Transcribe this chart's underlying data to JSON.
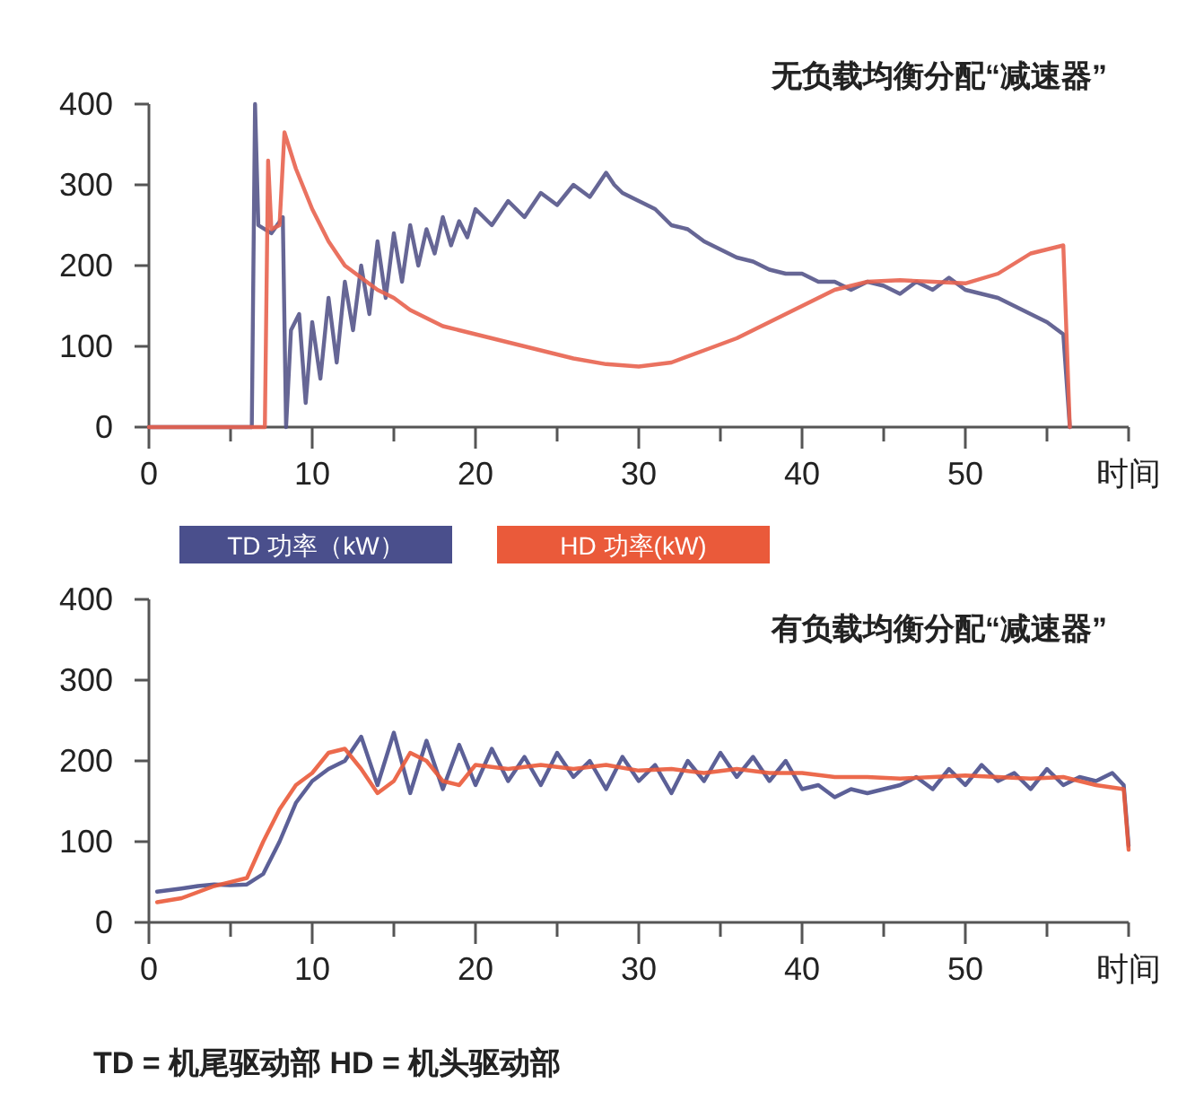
{
  "chart_data": [
    {
      "type": "line",
      "title": "无负载均衡分配“减速器”",
      "xlabel": "时间",
      "grid": false,
      "line_style": "solid",
      "xlim": [
        0,
        60
      ],
      "ylim": [
        0,
        400
      ],
      "xticks": [
        0,
        {
          "value": 5,
          "label": null
        },
        10,
        {
          "value": 15,
          "label": null
        },
        20,
        {
          "value": 25,
          "label": null
        },
        30,
        {
          "value": 35,
          "label": null
        },
        40,
        {
          "value": 45,
          "label": null
        },
        50,
        {
          "value": 55,
          "label": null
        },
        {
          "value": 60,
          "label": null
        }
      ],
      "yticks": [
        0,
        100,
        200,
        300,
        400
      ],
      "series": [
        {
          "color": "#55558a",
          "x": [
            0,
            6.3,
            6.5,
            6.7,
            7.5,
            8.2,
            8.4,
            8.7,
            9.2,
            9.6,
            10,
            10.5,
            11,
            11.5,
            12,
            12.5,
            13,
            13.5,
            14,
            14.5,
            15,
            15.5,
            16,
            16.5,
            17,
            17.5,
            18,
            18.5,
            19,
            19.5,
            20,
            21,
            22,
            23,
            24,
            25,
            26,
            27,
            28,
            28.5,
            29,
            30,
            31,
            32,
            33,
            34,
            35,
            36,
            37,
            38,
            39,
            40,
            41,
            42,
            43,
            44,
            45,
            46,
            47,
            48,
            49,
            50,
            51,
            52,
            53,
            54,
            55,
            56,
            56.4
          ],
          "values": [
            0,
            0,
            400,
            250,
            240,
            260,
            0,
            120,
            140,
            30,
            130,
            60,
            160,
            80,
            180,
            120,
            200,
            140,
            230,
            160,
            240,
            180,
            250,
            200,
            245,
            215,
            260,
            225,
            255,
            235,
            270,
            250,
            280,
            260,
            290,
            275,
            300,
            285,
            315,
            300,
            290,
            280,
            270,
            250,
            245,
            230,
            220,
            210,
            205,
            195,
            190,
            190,
            180,
            180,
            170,
            180,
            175,
            165,
            180,
            170,
            185,
            170,
            165,
            160,
            150,
            140,
            130,
            115,
            0
          ]
        },
        {
          "color": "#e8634f",
          "x": [
            0,
            7.1,
            7.3,
            7.5,
            8.0,
            8.3,
            9,
            10,
            11,
            12,
            13,
            14,
            15,
            16,
            17,
            18,
            19,
            20,
            22,
            24,
            26,
            28,
            30,
            32,
            34,
            36,
            38,
            40,
            42,
            44,
            46,
            48,
            50,
            52,
            54,
            56,
            56.4
          ],
          "values": [
            0,
            0,
            330,
            245,
            250,
            365,
            320,
            270,
            230,
            200,
            185,
            170,
            160,
            145,
            135,
            125,
            120,
            115,
            105,
            95,
            85,
            78,
            75,
            80,
            95,
            110,
            130,
            150,
            170,
            180,
            182,
            180,
            178,
            190,
            215,
            225,
            0
          ]
        }
      ]
    },
    {
      "type": "line",
      "title": "有负载均衡分配“减速器”",
      "xlabel": "时间",
      "grid": false,
      "line_style": "solid",
      "legend": "top left",
      "xlim": [
        0,
        60
      ],
      "ylim": [
        0,
        400
      ],
      "xticks": [
        0,
        {
          "value": 5,
          "label": null
        },
        10,
        {
          "value": 15,
          "label": null
        },
        20,
        {
          "value": 25,
          "label": null
        },
        30,
        {
          "value": 35,
          "label": null
        },
        40,
        {
          "value": 45,
          "label": null
        },
        50,
        {
          "value": 55,
          "label": null
        },
        {
          "value": 60,
          "label": null
        }
      ],
      "yticks": [
        0,
        100,
        200,
        300,
        400
      ],
      "annotations": [
        "TD = 机尾驱动部  HD = 机头驱动部"
      ],
      "series": [
        {
          "name": "TD 功率（kW）",
          "color": "#4a4f8c",
          "x": [
            0.5,
            2,
            3,
            4,
            5,
            6,
            7,
            8,
            9,
            10,
            11,
            12,
            13,
            14,
            15,
            16,
            17,
            18,
            19,
            20,
            21,
            22,
            23,
            24,
            25,
            26,
            27,
            28,
            29,
            30,
            31,
            32,
            33,
            34,
            35,
            36,
            37,
            38,
            39,
            40,
            41,
            42,
            43,
            44,
            45,
            46,
            47,
            48,
            49,
            50,
            51,
            52,
            53,
            54,
            55,
            56,
            57,
            58,
            59,
            59.7,
            60
          ],
          "values": [
            38,
            42,
            45,
            47,
            46,
            47,
            60,
            100,
            148,
            175,
            190,
            200,
            230,
            170,
            235,
            160,
            225,
            165,
            220,
            170,
            215,
            175,
            205,
            170,
            210,
            180,
            200,
            165,
            205,
            175,
            195,
            160,
            200,
            175,
            210,
            180,
            205,
            175,
            200,
            165,
            170,
            155,
            165,
            160,
            165,
            170,
            180,
            165,
            190,
            170,
            195,
            175,
            185,
            165,
            190,
            170,
            180,
            175,
            185,
            170,
            95
          ]
        },
        {
          "name": "HD 功率(kW)",
          "color": "#ea5a3a",
          "x": [
            0.5,
            2,
            4,
            6,
            7,
            8,
            9,
            10,
            11,
            12,
            13,
            14,
            15,
            16,
            17,
            18,
            19,
            20,
            22,
            24,
            26,
            28,
            30,
            32,
            34,
            36,
            38,
            40,
            42,
            44,
            46,
            48,
            50,
            52,
            54,
            56,
            58,
            59.7,
            60
          ],
          "values": [
            25,
            30,
            45,
            55,
            100,
            140,
            170,
            185,
            210,
            215,
            190,
            160,
            175,
            210,
            200,
            175,
            170,
            195,
            190,
            195,
            190,
            195,
            188,
            190,
            185,
            190,
            185,
            185,
            180,
            180,
            178,
            180,
            182,
            180,
            178,
            180,
            170,
            165,
            90
          ]
        }
      ]
    }
  ]
}
